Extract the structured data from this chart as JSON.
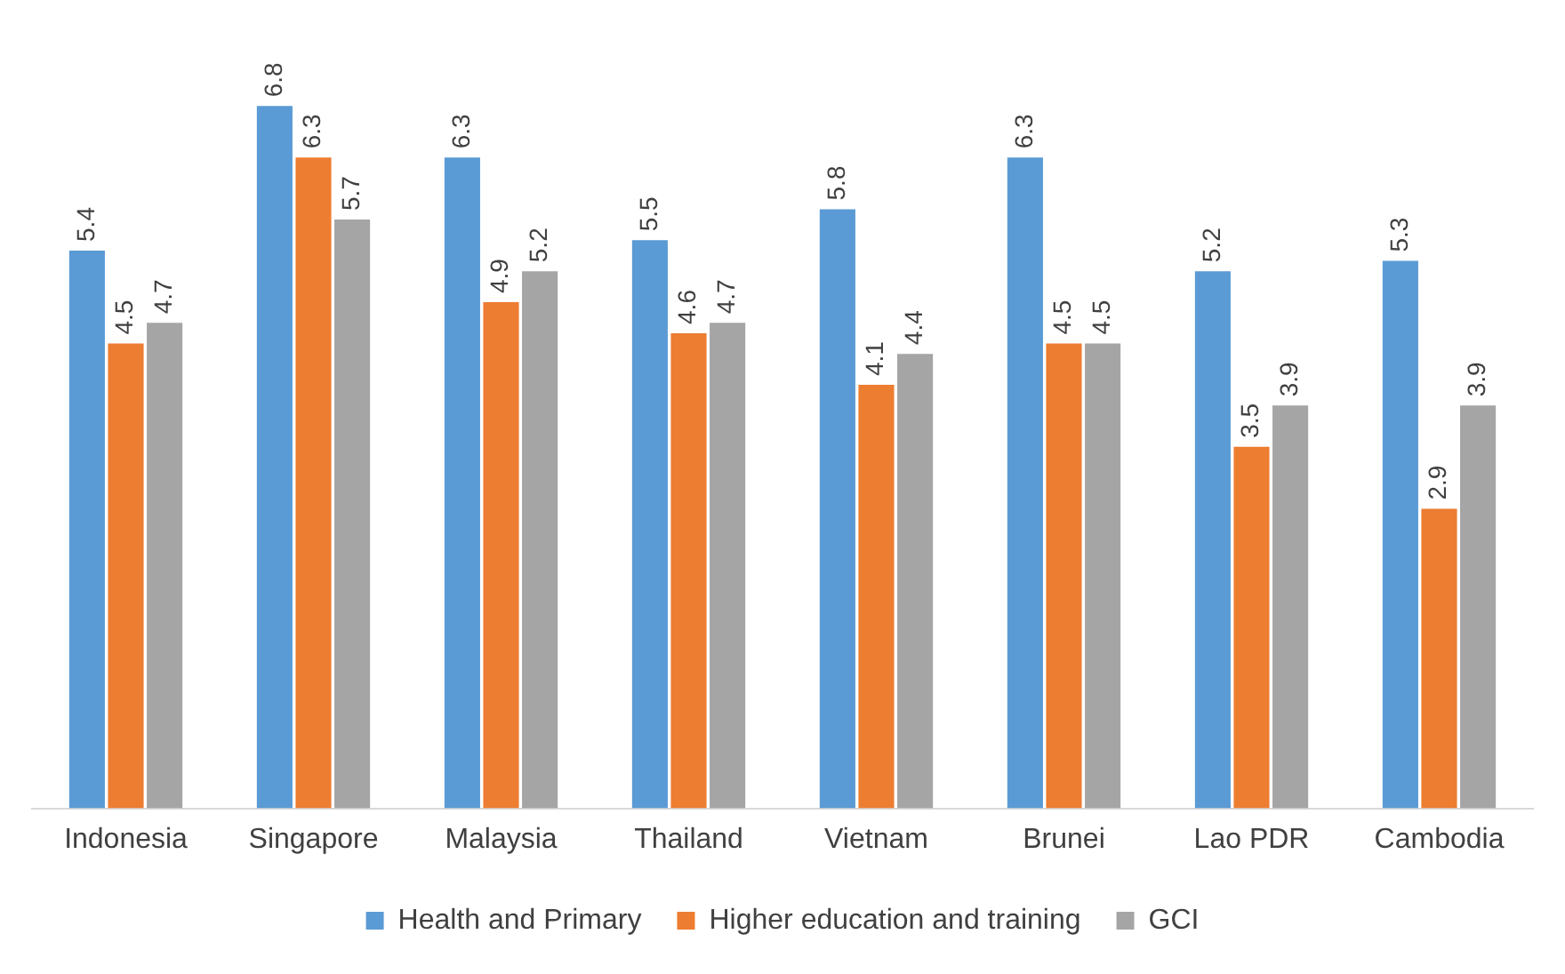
{
  "chart_data": {
    "type": "bar",
    "categories": [
      "Indonesia",
      "Singapore",
      "Malaysia",
      "Thailand",
      "Vietnam",
      "Brunei",
      "Lao PDR",
      "Cambodia"
    ],
    "series": [
      {
        "name": "Health and Primary",
        "color": "#5b9bd5",
        "values": [
          5.4,
          6.8,
          6.3,
          5.5,
          5.8,
          6.3,
          5.2,
          5.3
        ]
      },
      {
        "name": "Higher education and training",
        "color": "#ed7d31",
        "values": [
          4.5,
          6.3,
          4.9,
          4.6,
          4.1,
          4.5,
          3.5,
          2.9
        ]
      },
      {
        "name": "GCI",
        "color": "#a5a5a5",
        "values": [
          4.7,
          5.7,
          5.2,
          4.7,
          4.4,
          4.5,
          3.9,
          3.9
        ]
      }
    ],
    "data_labels": true,
    "legend": "bottom",
    "grid": false,
    "tick_labels": "x"
  }
}
